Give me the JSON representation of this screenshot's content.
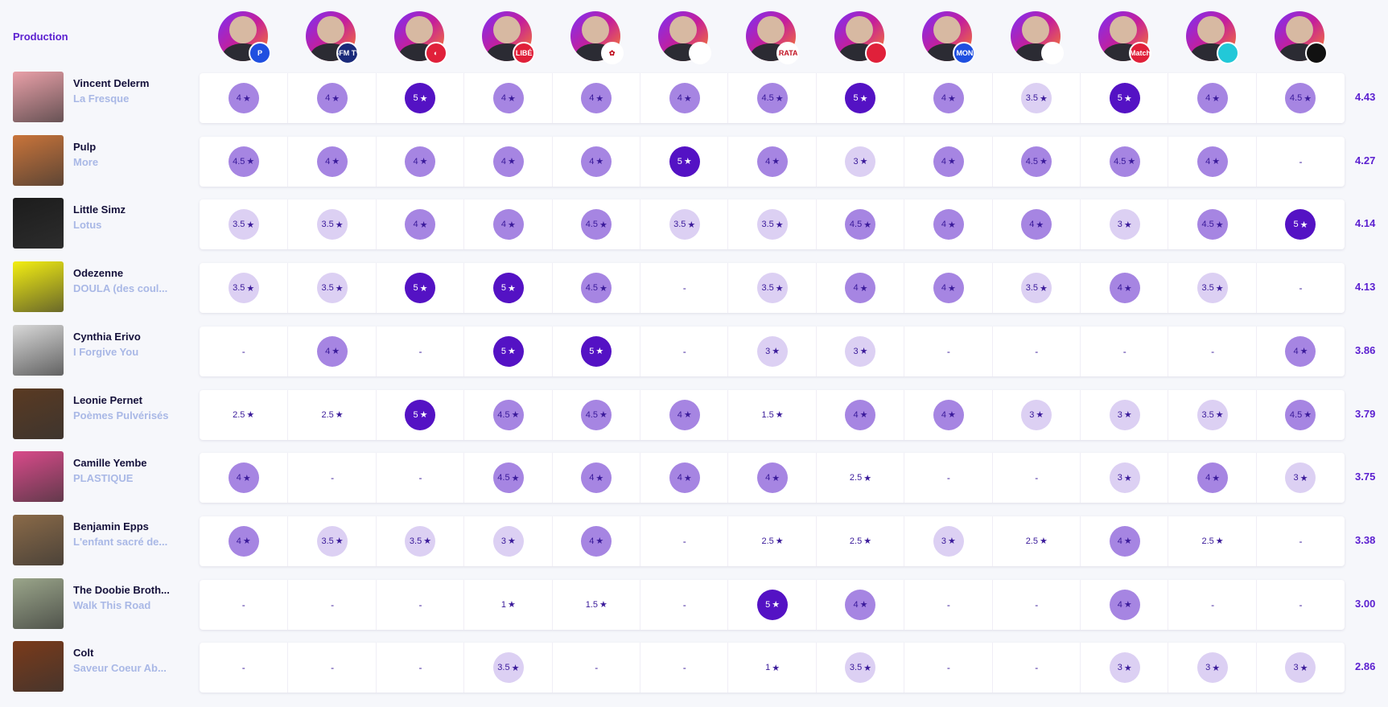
{
  "header": {
    "label": "Production"
  },
  "reviewers": [
    {
      "badge": "P",
      "badge_color": "#1f4fe0"
    },
    {
      "badge": "BFM TV.",
      "badge_color": "#1a2a7a"
    },
    {
      "badge": "◐",
      "badge_color": "#e0203a"
    },
    {
      "badge": "LIBÉ",
      "badge_color": "#e0203a"
    },
    {
      "badge": "✿",
      "badge_color": "#ffffff"
    },
    {
      "badge": "",
      "badge_color": "#ffffff"
    },
    {
      "badge": "TARATATA",
      "badge_color": "#ffffff"
    },
    {
      "badge": "",
      "badge_color": "#e0203a"
    },
    {
      "badge": "LE MONDE",
      "badge_color": "#1f4fe0"
    },
    {
      "badge": "",
      "badge_color": "#ffffff"
    },
    {
      "badge": "Match",
      "badge_color": "#e0203a"
    },
    {
      "badge": "",
      "badge_color": "#22c8d8"
    },
    {
      "badge": "",
      "badge_color": "#111111"
    }
  ],
  "rows": [
    {
      "artist": "Vincent Delerm",
      "album": "La Fresque",
      "cover": "#e9a0a8",
      "avg": "4.43",
      "ratings": [
        "4",
        "4",
        "5",
        "4",
        "4",
        "4",
        "4.5",
        "5",
        "4",
        "3.5",
        "5",
        "4",
        "4.5"
      ]
    },
    {
      "artist": "Pulp",
      "album": "More",
      "cover": "#c9743a",
      "avg": "4.27",
      "ratings": [
        "4.5",
        "4",
        "4",
        "4",
        "4",
        "5",
        "4",
        "3",
        "4",
        "4.5",
        "4.5",
        "4",
        "-"
      ]
    },
    {
      "artist": "Little Simz",
      "album": "Lotus",
      "cover": "#1c1c1c",
      "avg": "4.14",
      "ratings": [
        "3.5",
        "3.5",
        "4",
        "4",
        "4.5",
        "3.5",
        "3.5",
        "4.5",
        "4",
        "4",
        "3",
        "4.5",
        "5"
      ]
    },
    {
      "artist": "Odezenne",
      "album": "DOULA (des coul...",
      "cover": "#f3ee12",
      "avg": "4.13",
      "ratings": [
        "3.5",
        "3.5",
        "5",
        "5",
        "4.5",
        "-",
        "3.5",
        "4",
        "4",
        "3.5",
        "4",
        "3.5",
        "-"
      ]
    },
    {
      "artist": "Cynthia Erivo",
      "album": "I Forgive You",
      "cover": "#d8d8d8",
      "avg": "3.86",
      "ratings": [
        "-",
        "4",
        "-",
        "5",
        "5",
        "-",
        "3",
        "3",
        "-",
        "-",
        "-",
        "-",
        "4"
      ]
    },
    {
      "artist": "Leonie Pernet",
      "album": "Poèmes Pulvérisés",
      "cover": "#5a3a22",
      "avg": "3.79",
      "ratings": [
        "2.5",
        "2.5",
        "5",
        "4.5",
        "4.5",
        "4",
        "1.5",
        "4",
        "4",
        "3",
        "3",
        "3.5",
        "4.5"
      ]
    },
    {
      "artist": "Camille Yembe",
      "album": "PLASTIQUE",
      "cover": "#d94a8a",
      "avg": "3.75",
      "ratings": [
        "4",
        "-",
        "-",
        "4.5",
        "4",
        "4",
        "4",
        "2.5",
        "-",
        "-",
        "3",
        "4",
        "3"
      ]
    },
    {
      "artist": "Benjamin Epps",
      "album": "L'enfant sacré de...",
      "cover": "#8a6a48",
      "avg": "3.38",
      "ratings": [
        "4",
        "3.5",
        "3.5",
        "3",
        "4",
        "-",
        "2.5",
        "2.5",
        "3",
        "2.5",
        "4",
        "2.5",
        "-"
      ]
    },
    {
      "artist": "The Doobie Broth...",
      "album": "Walk This Road",
      "cover": "#9aa58a",
      "avg": "3.00",
      "ratings": [
        "-",
        "-",
        "-",
        "1",
        "1.5",
        "-",
        "5",
        "4",
        "-",
        "-",
        "4",
        "-",
        "-"
      ]
    },
    {
      "artist": "Colt",
      "album": "Saveur Coeur Ab...",
      "cover": "#7a3a1a",
      "avg": "2.86",
      "ratings": [
        "-",
        "-",
        "-",
        "3.5",
        "-",
        "-",
        "1",
        "3.5",
        "-",
        "-",
        "3",
        "3",
        "3"
      ]
    }
  ]
}
